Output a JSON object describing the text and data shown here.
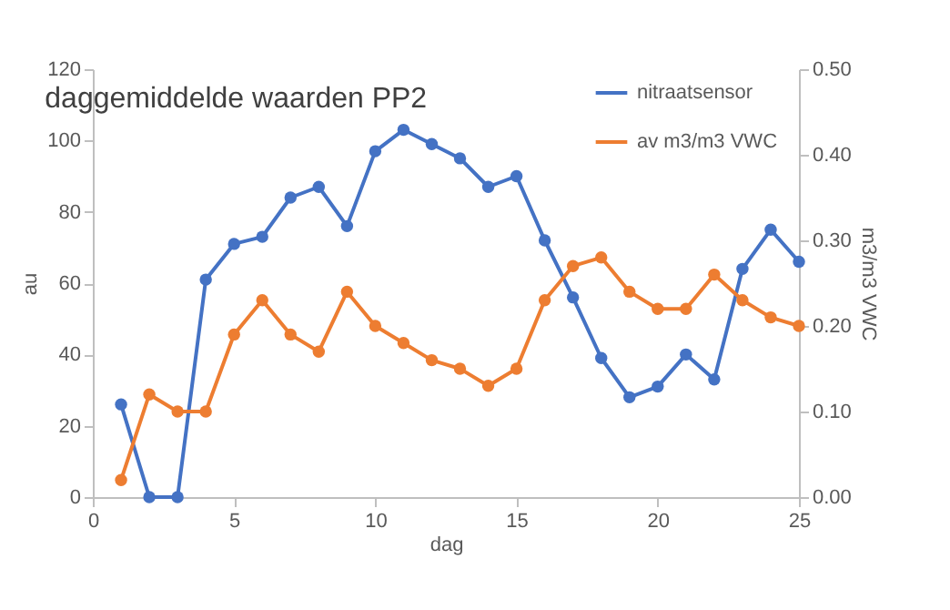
{
  "chart_data": {
    "type": "line",
    "title": "daggemiddelde waarden PP2",
    "xlabel": "dag",
    "ylabel": "au",
    "y2label": "m3/m3 VWC",
    "x": [
      1,
      2,
      3,
      4,
      5,
      6,
      7,
      8,
      9,
      10,
      11,
      12,
      13,
      14,
      15,
      16,
      17,
      18,
      19,
      20,
      21,
      22,
      23,
      24,
      25
    ],
    "series": [
      {
        "name": "nitraatsensor",
        "color": "#4472c4",
        "values": [
          26,
          0,
          0,
          61,
          71,
          73,
          84,
          87,
          76,
          97,
          103,
          99,
          95,
          87,
          90,
          72,
          56,
          39,
          28,
          31,
          40,
          33,
          64,
          75,
          66
        ]
      },
      {
        "name": "av m3/m3 VWC",
        "color": "#ed7d31",
        "axis": "y2",
        "values": [
          0.02,
          0.12,
          0.1,
          0.1,
          0.19,
          0.23,
          0.19,
          0.17,
          0.24,
          0.2,
          0.18,
          0.16,
          0.15,
          0.13,
          0.15,
          0.23,
          0.27,
          0.28,
          0.24,
          0.22,
          0.22,
          0.26,
          0.23,
          0.21,
          0.2
        ]
      }
    ],
    "xlim": [
      0,
      25
    ],
    "xticks": [
      0,
      5,
      10,
      15,
      20,
      25
    ],
    "ylim": [
      0,
      120
    ],
    "yticks": [
      0,
      20,
      40,
      60,
      80,
      100,
      120
    ],
    "y2lim": [
      0,
      0.5
    ],
    "y2ticks": [
      {
        "value": 0,
        "label": "0.00"
      },
      {
        "value": 0.1,
        "label": "0.10"
      },
      {
        "value": 0.2,
        "label": "0.20"
      },
      {
        "value": 0.3,
        "label": "0.30"
      },
      {
        "value": 0.4,
        "label": "0.40"
      },
      {
        "value": 0.5,
        "label": "0.50"
      }
    ],
    "grid": false,
    "legend": "top right",
    "marker": "circle",
    "line_style": "solid"
  }
}
